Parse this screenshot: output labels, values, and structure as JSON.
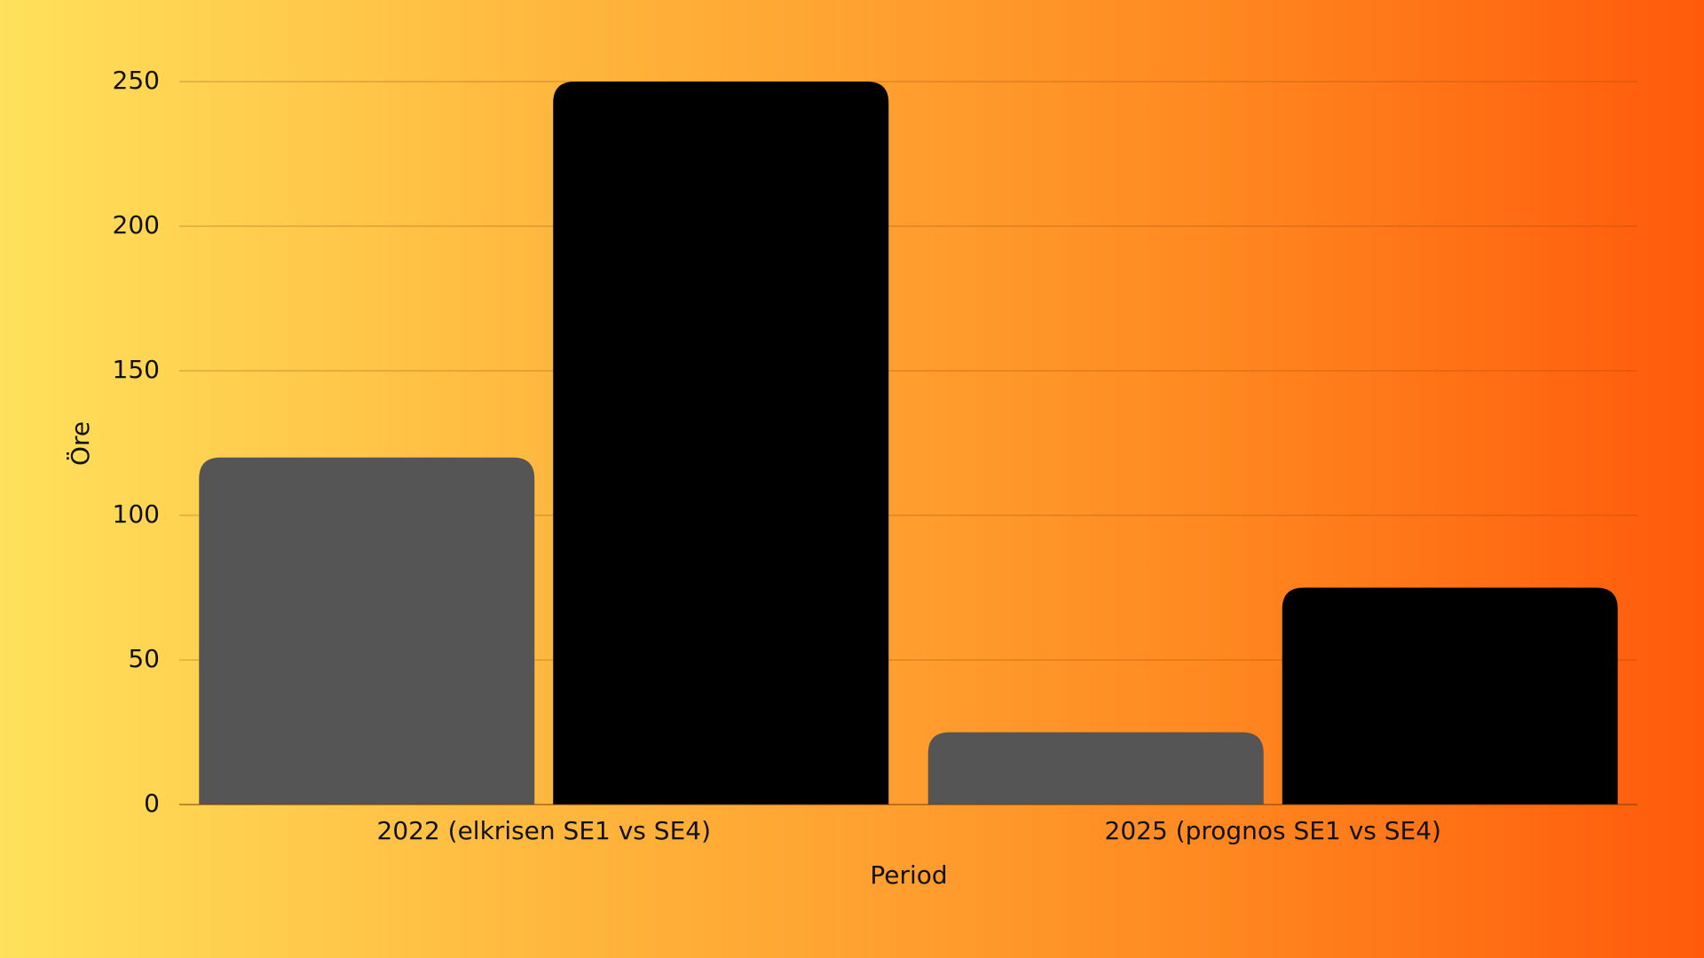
{
  "chart_data": {
    "type": "bar",
    "categories": [
      "2022 (elkrisen SE1 vs SE4)",
      "2025 (prognos SE1 vs SE4)"
    ],
    "series": [
      {
        "color": "#555555",
        "values": [
          120,
          25
        ]
      },
      {
        "color": "#000000",
        "values": [
          250,
          75
        ]
      }
    ],
    "xlabel": "Period",
    "ylabel": "Öre",
    "ylim": [
      0,
      250
    ],
    "yticks": [
      0,
      50,
      100,
      150,
      200,
      250
    ],
    "grid": true
  }
}
